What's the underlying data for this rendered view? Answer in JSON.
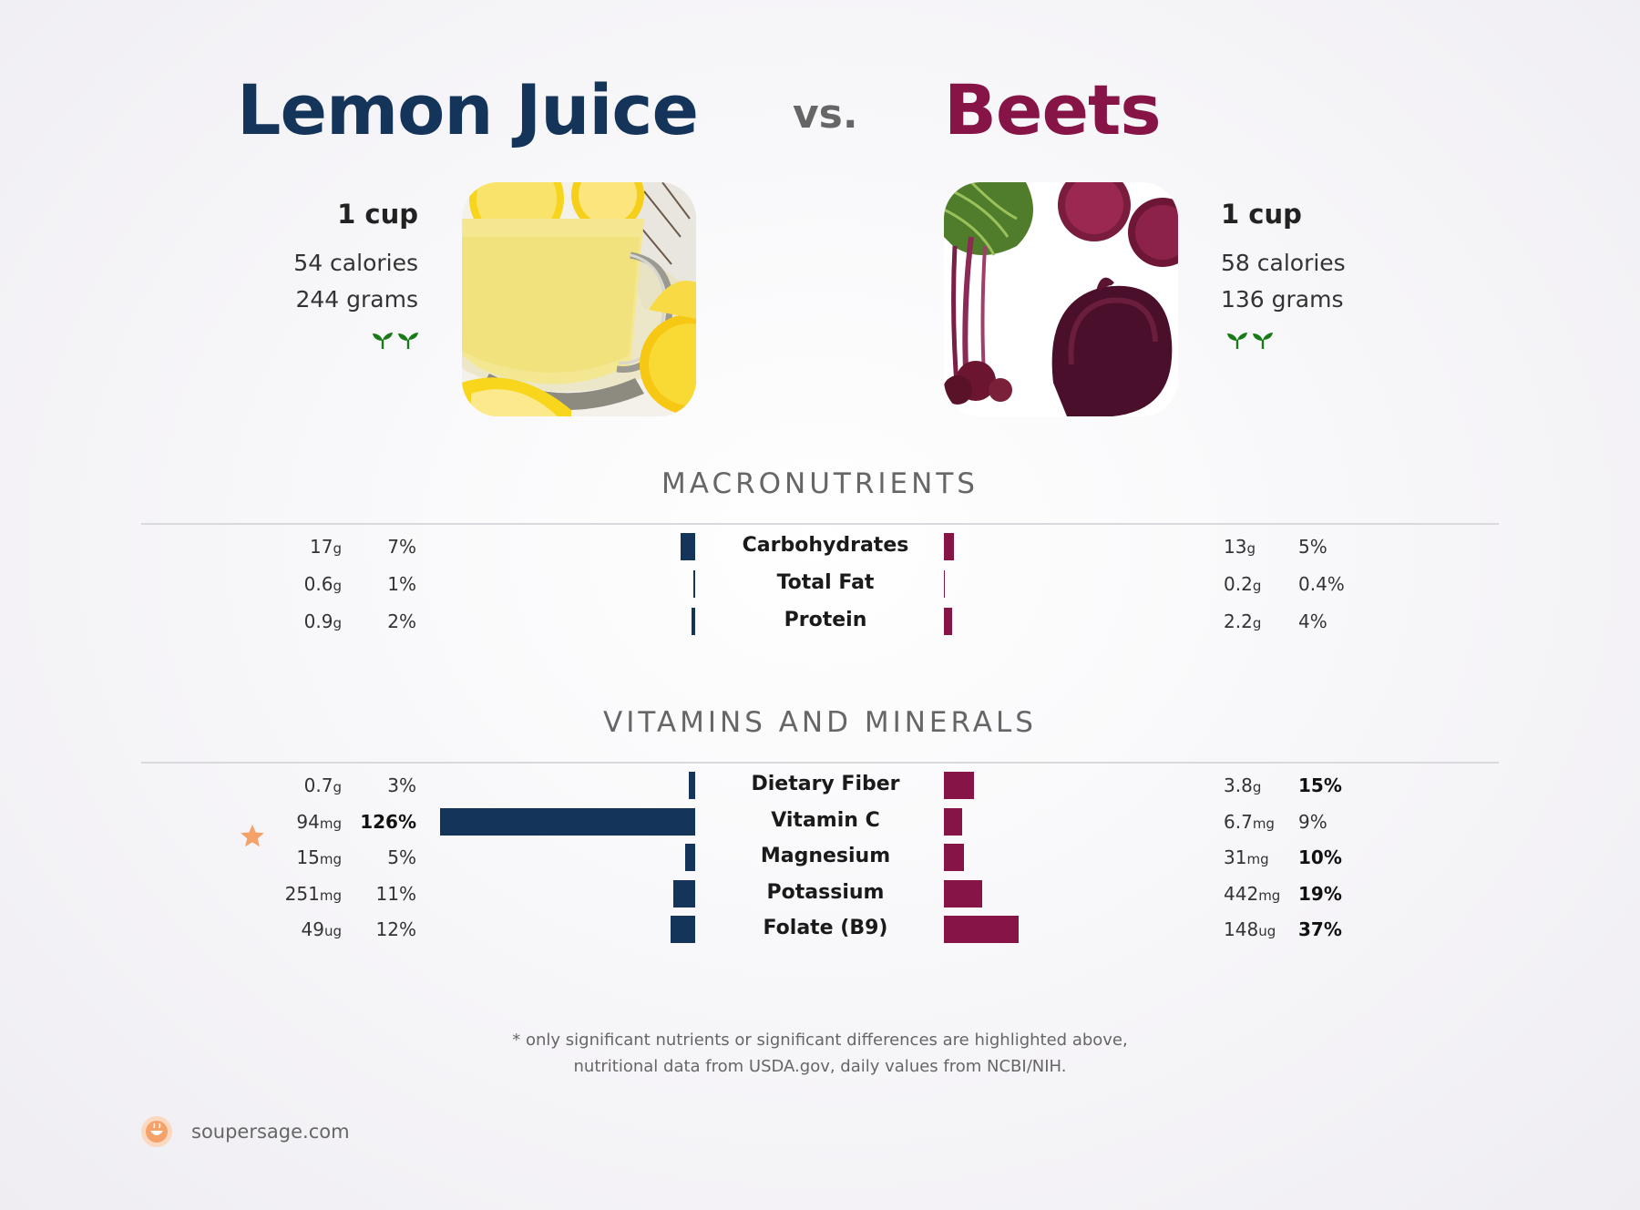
{
  "header": {
    "left_title": "Lemon Juice",
    "vs_label": "vs.",
    "right_title": "Beets"
  },
  "left_food": {
    "serving": "1 cup",
    "calories": "54 calories",
    "grams": "244 grams",
    "photo_icon": "lemon-juice-photo",
    "badge_icon": "vegan-sprouts-icon"
  },
  "right_food": {
    "serving": "1 cup",
    "calories": "58 calories",
    "grams": "136 grams",
    "photo_icon": "beets-photo",
    "badge_icon": "vegan-sprouts-icon"
  },
  "colors": {
    "left": "#143459",
    "right": "#861447",
    "star": "#f4a26a"
  },
  "sections": {
    "macros_title": "MACRONUTRIENTS",
    "vitamins_title": "VITAMINS AND MINERALS"
  },
  "chart_data": [
    {
      "type": "bar",
      "orientation": "diverging-horizontal",
      "title": "MACRONUTRIENTS",
      "categories": [
        "Carbohydrates",
        "Total Fat",
        "Protein"
      ],
      "series": [
        {
          "name": "Lemon Juice",
          "amounts": [
            "17",
            "0.6",
            "0.9"
          ],
          "units": [
            "g",
            "g",
            "g"
          ],
          "pct_labels": [
            "7%",
            "1%",
            "2%"
          ],
          "values": [
            7,
            1,
            2
          ],
          "bold": [
            false,
            false,
            false
          ]
        },
        {
          "name": "Beets",
          "amounts": [
            "13",
            "0.2",
            "2.2"
          ],
          "units": [
            "g",
            "g",
            "g"
          ],
          "pct_labels": [
            "5%",
            "0.4%",
            "4%"
          ],
          "values": [
            5,
            0.4,
            4
          ],
          "bold": [
            false,
            false,
            false
          ]
        }
      ]
    },
    {
      "type": "bar",
      "orientation": "diverging-horizontal",
      "title": "VITAMINS AND MINERALS",
      "categories": [
        "Dietary Fiber",
        "Vitamin C",
        "Magnesium",
        "Potassium",
        "Folate (B9)"
      ],
      "series": [
        {
          "name": "Lemon Juice",
          "amounts": [
            "0.7",
            "94",
            "15",
            "251",
            "49"
          ],
          "units": [
            "g",
            "mg",
            "mg",
            "mg",
            "ug"
          ],
          "pct_labels": [
            "3%",
            "126%",
            "5%",
            "11%",
            "12%"
          ],
          "values": [
            3,
            126,
            5,
            11,
            12
          ],
          "bold": [
            false,
            true,
            false,
            false,
            false
          ],
          "star": [
            false,
            true,
            false,
            false,
            false
          ]
        },
        {
          "name": "Beets",
          "amounts": [
            "3.8",
            "6.7",
            "31",
            "442",
            "148"
          ],
          "units": [
            "g",
            "mg",
            "mg",
            "mg",
            "ug"
          ],
          "pct_labels": [
            "15%",
            "9%",
            "10%",
            "19%",
            "37%"
          ],
          "values": [
            15,
            9,
            10,
            19,
            37
          ],
          "bold": [
            true,
            false,
            true,
            true,
            true
          ]
        }
      ]
    }
  ],
  "footer": {
    "note_line1": "* only significant nutrients or significant differences are highlighted above,",
    "note_line2": "nutritional data from USDA.gov, daily values from NCBI/NIH.",
    "brand": "soupersage.com",
    "brand_icon": "soupersage-logo-icon"
  }
}
